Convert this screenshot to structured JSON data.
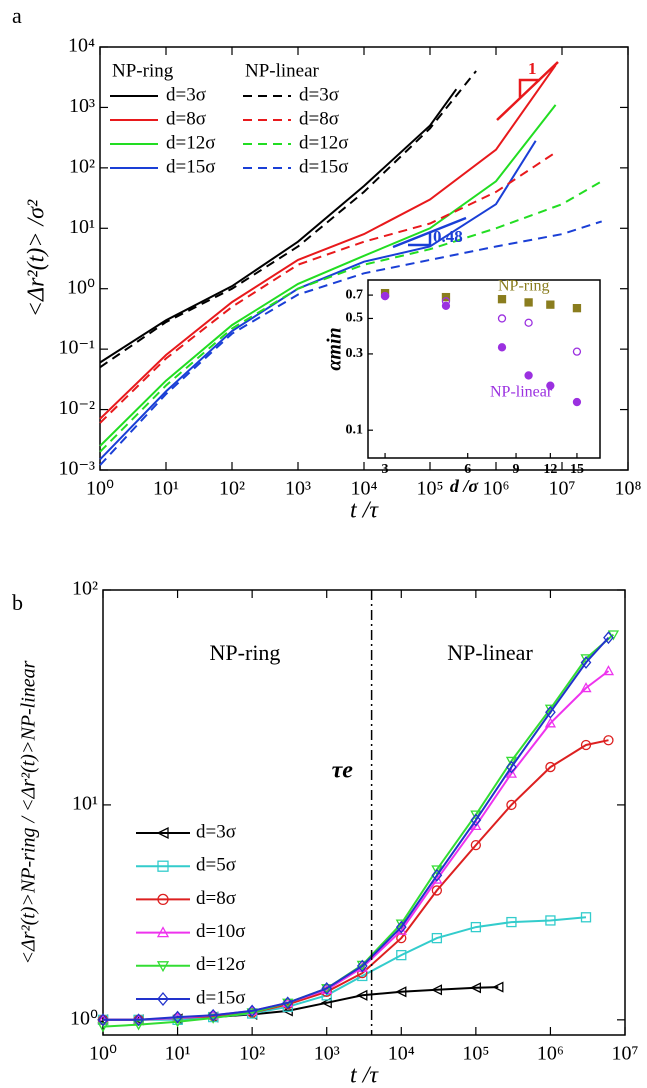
{
  "chart_data": [
    {
      "type": "line",
      "panel": "a",
      "x_label": "t /τ",
      "y_label": "<Δr²(t)> /σ²",
      "log_x": true,
      "log_y": true,
      "xlim": [
        1,
        100000000
      ],
      "ylim": [
        0.001,
        10000
      ],
      "xticks": [
        {
          "value": 1,
          "label": "10⁰"
        },
        {
          "value": 10,
          "label": "10¹"
        },
        {
          "value": 100,
          "label": "10²"
        },
        {
          "value": 1000,
          "label": "10³"
        },
        {
          "value": 10000,
          "label": "10⁴"
        },
        {
          "value": 100000,
          "label": "10⁵"
        },
        {
          "value": 1000000,
          "label": "10⁶"
        },
        {
          "value": 10000000,
          "label": "10⁷"
        },
        {
          "value": 100000000,
          "label": "10⁸"
        }
      ],
      "yticks": [
        {
          "value": 0.001,
          "label": "10⁻³"
        },
        {
          "value": 0.01,
          "label": "10⁻²"
        },
        {
          "value": 0.1,
          "label": "10⁻¹"
        },
        {
          "value": 1,
          "label": "10⁰"
        },
        {
          "value": 10,
          "label": "10¹"
        },
        {
          "value": 100,
          "label": "10²"
        },
        {
          "value": 1000,
          "label": "10³"
        },
        {
          "value": 10000,
          "label": "10⁴"
        }
      ],
      "legend_groups": [
        "NP-ring",
        "NP-linear"
      ],
      "annotations": [
        {
          "text": "1",
          "color": "#e8191c"
        },
        {
          "text": "0.48",
          "color": "#1a3fd6"
        }
      ],
      "series": [
        {
          "name": "d=3σ",
          "color": "#000000",
          "dash": false,
          "x": [
            1,
            10,
            100,
            1000,
            10000,
            100000,
            250000
          ],
          "values": [
            0.06,
            0.3,
            1.1,
            6,
            50,
            500,
            2000
          ]
        },
        {
          "name": "d=8σ",
          "color": "#e8191c",
          "dash": false,
          "x": [
            1,
            10,
            100,
            1000,
            10000,
            100000,
            1000000,
            8000000
          ],
          "values": [
            0.007,
            0.08,
            0.6,
            3,
            8,
            30,
            200,
            5000
          ]
        },
        {
          "name": "d=12σ",
          "color": "#22dd22",
          "dash": false,
          "x": [
            1,
            10,
            100,
            1000,
            10000,
            100000,
            1000000,
            8000000
          ],
          "values": [
            0.0025,
            0.03,
            0.25,
            1.2,
            3.5,
            10,
            60,
            1100
          ]
        },
        {
          "name": "d=15σ",
          "color": "#1a3fd6",
          "dash": false,
          "x": [
            1,
            10,
            100,
            1000,
            10000,
            100000,
            1000000,
            4000000
          ],
          "values": [
            0.0015,
            0.02,
            0.2,
            1.0,
            2.8,
            5,
            25,
            280
          ]
        },
        {
          "name": "d=3σ",
          "color": "#000000",
          "dash": true,
          "x": [
            1,
            10,
            100,
            1000,
            10000,
            100000,
            500000
          ],
          "values": [
            0.05,
            0.28,
            1.0,
            5,
            40,
            450,
            4000
          ]
        },
        {
          "name": "d=8σ",
          "color": "#e8191c",
          "dash": true,
          "x": [
            1,
            10,
            100,
            1000,
            10000,
            100000,
            1000000,
            8000000
          ],
          "values": [
            0.006,
            0.07,
            0.5,
            2.5,
            6,
            12,
            40,
            180
          ]
        },
        {
          "name": "d=12σ",
          "color": "#22dd22",
          "dash": true,
          "x": [
            1,
            10,
            100,
            1000,
            10000,
            100000,
            1000000,
            10000000,
            40000000
          ],
          "values": [
            0.002,
            0.025,
            0.22,
            1.0,
            2.5,
            4.5,
            10,
            25,
            60
          ]
        },
        {
          "name": "d=15σ",
          "color": "#1a3fd6",
          "dash": true,
          "x": [
            1,
            10,
            100,
            1000,
            10000,
            100000,
            1000000,
            10000000,
            40000000
          ],
          "values": [
            0.0012,
            0.018,
            0.18,
            0.8,
            1.8,
            3.0,
            5,
            8,
            13
          ]
        }
      ]
    },
    {
      "type": "scatter",
      "x_label": "d /σ",
      "y_label": "αmin",
      "log_x": true,
      "log_y": true,
      "xlim": [
        2.6,
        18.2
      ],
      "ylim": [
        0.067,
        0.87
      ],
      "xticks": [
        3,
        6,
        9,
        12,
        15
      ],
      "yticks": [
        0.1,
        0.3,
        0.5,
        0.7
      ],
      "x": [
        3,
        5,
        8,
        10,
        12,
        15
      ],
      "series": [
        {
          "name": "NP-ring",
          "color": "#8a7d1e",
          "marker": "square",
          "filled": true,
          "values": [
            0.72,
            0.68,
            0.66,
            0.63,
            0.61,
            0.58
          ]
        },
        {
          "name": "NP-linear",
          "color": "#9b30e0",
          "marker": "circle",
          "filled": true,
          "values": [
            0.69,
            0.6,
            0.33,
            0.22,
            0.19,
            0.15
          ]
        },
        {
          "color": "#9b30e0",
          "marker": "circle",
          "filled": false,
          "values": [
            0.69,
            0.64,
            0.5,
            0.47,
            null,
            0.31
          ]
        }
      ]
    },
    {
      "type": "line",
      "panel": "b",
      "x_label": "t /τ",
      "y_label": "<Δr²(t)>NP-ring / <Δr²(t)>NP-linear",
      "log_x": true,
      "log_y": true,
      "xlim": [
        1,
        10000000
      ],
      "ylim": [
        0.85,
        100
      ],
      "xticks": [
        {
          "value": 1,
          "label": "10⁰"
        },
        {
          "value": 10,
          "label": "10¹"
        },
        {
          "value": 100,
          "label": "10²"
        },
        {
          "value": 1000,
          "label": "10³"
        },
        {
          "value": 10000,
          "label": "10⁴"
        },
        {
          "value": 100000,
          "label": "10⁵"
        },
        {
          "value": 1000000,
          "label": "10⁶"
        },
        {
          "value": 10000000,
          "label": "10⁷"
        }
      ],
      "yticks": [
        {
          "value": 1,
          "label": "10⁰"
        },
        {
          "value": 10,
          "label": "10¹"
        },
        {
          "value": 100,
          "label": "10²"
        }
      ],
      "annotations": [
        {
          "text": "NP-ring",
          "color": "#000000"
        },
        {
          "text": "NP-linear",
          "color": "#000000"
        }
      ],
      "vline": {
        "x": 4000,
        "label": "τe"
      },
      "series": [
        {
          "name": "d=3σ",
          "color": "#000000",
          "marker": "tri-left",
          "x": [
            1,
            3,
            10,
            30,
            100,
            300,
            1000,
            3000,
            10000,
            30000,
            100000,
            200000
          ],
          "values": [
            1.0,
            1.0,
            1.01,
            1.03,
            1.06,
            1.1,
            1.2,
            1.3,
            1.35,
            1.38,
            1.41,
            1.42
          ]
        },
        {
          "name": "d=5σ",
          "color": "#33cccc",
          "marker": "square",
          "x": [
            1,
            3,
            10,
            30,
            100,
            300,
            1000,
            3000,
            10000,
            30000,
            100000,
            300000,
            1000000,
            3000000
          ],
          "values": [
            1.0,
            1.0,
            1.0,
            1.03,
            1.07,
            1.15,
            1.3,
            1.6,
            2.0,
            2.4,
            2.7,
            2.85,
            2.9,
            3.0
          ]
        },
        {
          "name": "d=8σ",
          "color": "#dd2020",
          "marker": "circle",
          "x": [
            1,
            3,
            10,
            30,
            100,
            300,
            1000,
            3000,
            10000,
            30000,
            100000,
            300000,
            1000000,
            3000000,
            6000000
          ],
          "values": [
            1.0,
            1.0,
            1.02,
            1.04,
            1.08,
            1.18,
            1.35,
            1.65,
            2.4,
            4,
            6.5,
            10,
            15,
            19,
            20
          ]
        },
        {
          "name": "d=10σ",
          "color": "#ee33ee",
          "marker": "tri-up",
          "x": [
            1,
            3,
            10,
            30,
            100,
            300,
            1000,
            3000,
            10000,
            30000,
            100000,
            300000,
            1000000,
            3000000,
            6000000
          ],
          "values": [
            1.0,
            1.0,
            1.02,
            1.05,
            1.1,
            1.2,
            1.38,
            1.75,
            2.6,
            4.5,
            8,
            14,
            24,
            35,
            42
          ]
        },
        {
          "name": "d=12σ",
          "color": "#33dd33",
          "marker": "tri-down",
          "x": [
            1,
            3,
            10,
            30,
            100,
            300,
            1000,
            3000,
            10000,
            30000,
            100000,
            300000,
            1000000,
            3000000,
            7000000
          ],
          "values": [
            0.93,
            0.95,
            0.98,
            1.02,
            1.08,
            1.2,
            1.4,
            1.8,
            2.8,
            5,
            9,
            16,
            28,
            48,
            62
          ]
        },
        {
          "name": "d=15σ",
          "color": "#2233cc",
          "marker": "diamond",
          "x": [
            1,
            3,
            10,
            30,
            100,
            300,
            1000,
            3000,
            10000,
            30000,
            100000,
            300000,
            1000000,
            3000000,
            6000000
          ],
          "values": [
            1.0,
            1.0,
            1.03,
            1.05,
            1.1,
            1.2,
            1.4,
            1.78,
            2.7,
            4.7,
            8.5,
            15,
            27,
            46,
            60
          ]
        }
      ]
    }
  ]
}
